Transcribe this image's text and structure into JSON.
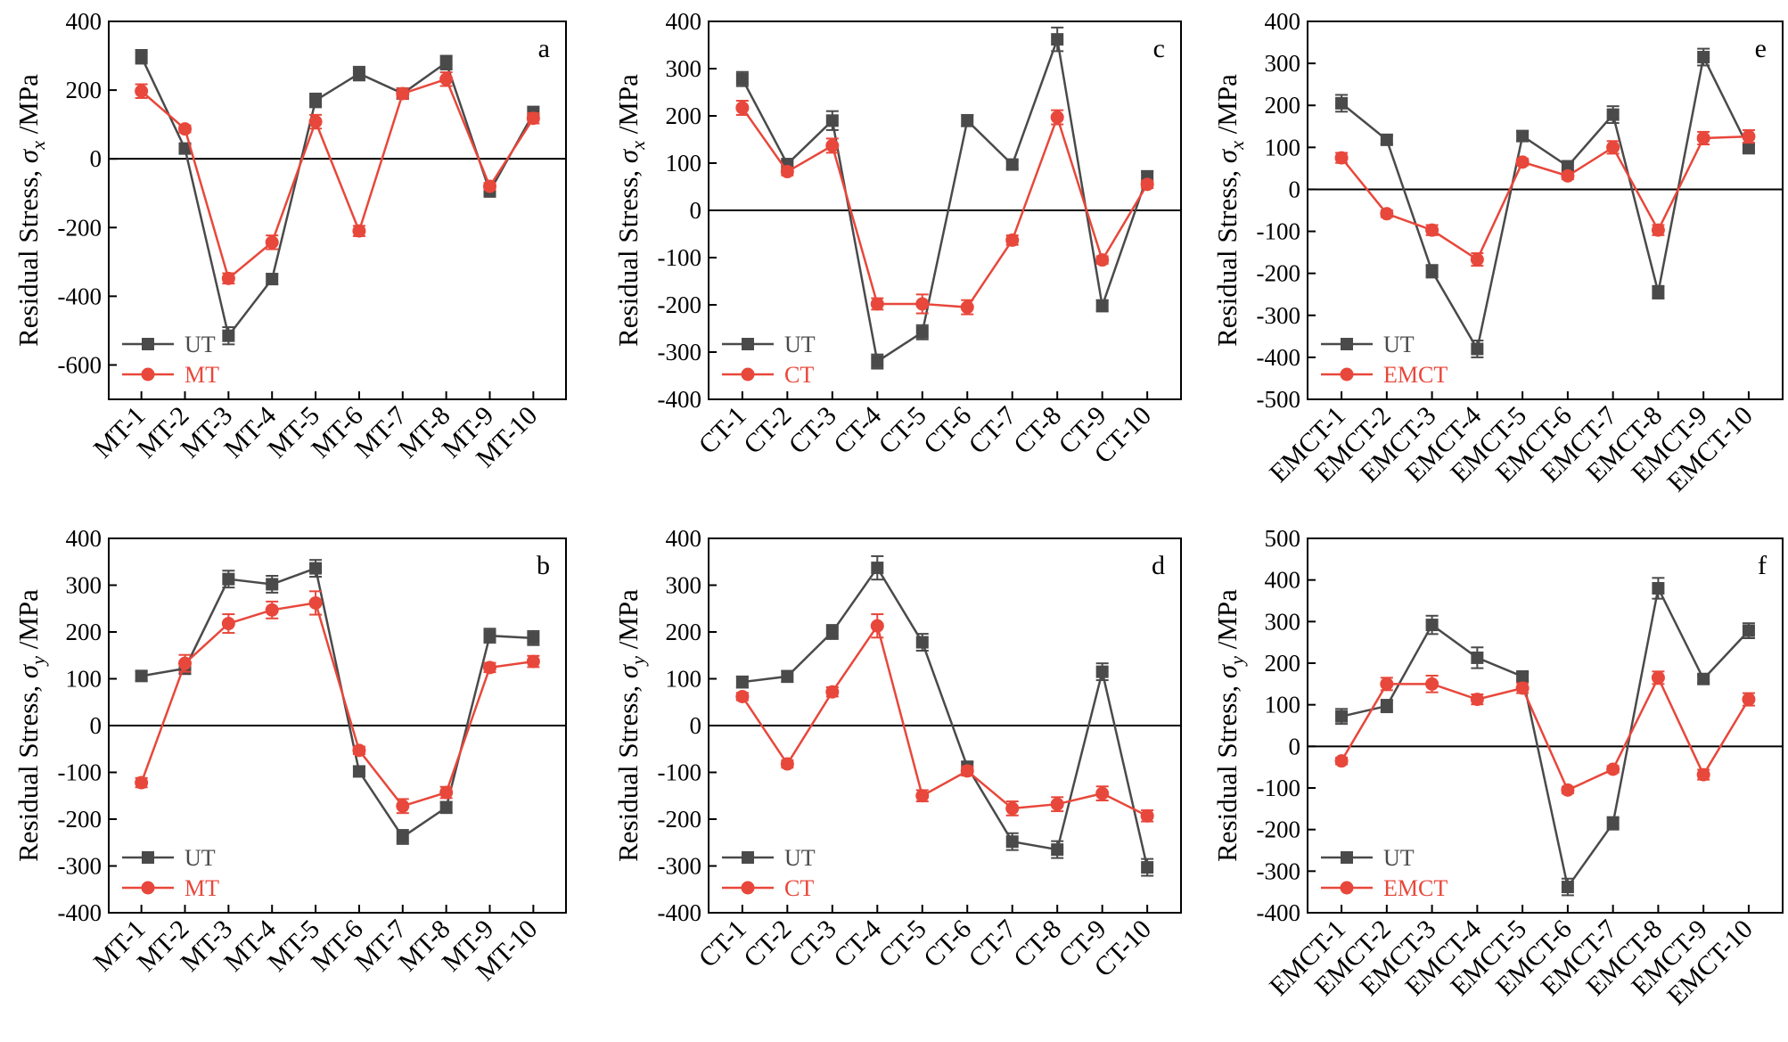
{
  "figure": {
    "colors": {
      "ut": "#4a4a4a",
      "treated": "#e8473b",
      "axis": "#000000"
    }
  },
  "chart_data": [
    {
      "panel_label": "a",
      "type": "line",
      "ylabel": "Residual Stress, σx /MPa",
      "ylabel_main": "Residual Stress, ",
      "ylabel_symbol": "σ",
      "ylabel_subscript": "x",
      "ylabel_unit": " /MPa",
      "ylim": [
        -700,
        400
      ],
      "yticks": [
        -600,
        -400,
        -200,
        0,
        200,
        400
      ],
      "categories": [
        "MT-1",
        "MT-2",
        "MT-3",
        "MT-4",
        "MT-5",
        "MT-6",
        "MT-7",
        "MT-8",
        "MT-9",
        "MT-10"
      ],
      "legend_position": "bottom-left",
      "series": [
        {
          "name": "UT",
          "marker": "square",
          "values": [
            297,
            30,
            -515,
            -350,
            170,
            248,
            190,
            280,
            -95,
            132
          ],
          "errors": [
            20,
            10,
            25,
            15,
            20,
            20,
            15,
            20,
            15,
            20
          ]
        },
        {
          "name": "MT",
          "marker": "circle",
          "values": [
            197,
            87,
            -348,
            -243,
            108,
            -210,
            190,
            232,
            -80,
            118
          ],
          "errors": [
            20,
            10,
            15,
            20,
            20,
            15,
            15,
            20,
            10,
            15
          ]
        }
      ]
    },
    {
      "panel_label": "c",
      "type": "line",
      "ylabel": "Residual Stress, σx /MPa",
      "ylabel_main": "Residual Stress, ",
      "ylabel_symbol": "σ",
      "ylabel_subscript": "x",
      "ylabel_unit": " /MPa",
      "ylim": [
        -400,
        400
      ],
      "yticks": [
        -400,
        -300,
        -200,
        -100,
        0,
        100,
        200,
        300,
        400
      ],
      "categories": [
        "CT-1",
        "CT-2",
        "CT-3",
        "CT-4",
        "CT-5",
        "CT-6",
        "CT-7",
        "CT-8",
        "CT-9",
        "CT-10"
      ],
      "legend_position": "bottom-left",
      "series": [
        {
          "name": "UT",
          "marker": "square",
          "values": [
            278,
            98,
            190,
            -320,
            -258,
            190,
            97,
            362,
            -202,
            72
          ],
          "errors": [
            15,
            8,
            20,
            15,
            15,
            12,
            8,
            25,
            12,
            10
          ]
        },
        {
          "name": "CT",
          "marker": "circle",
          "values": [
            217,
            82,
            137,
            -198,
            -198,
            -205,
            -63,
            197,
            -105,
            55
          ],
          "errors": [
            15,
            8,
            15,
            12,
            20,
            15,
            10,
            15,
            8,
            8
          ]
        }
      ]
    },
    {
      "panel_label": "e",
      "type": "line",
      "ylabel": "Residual Stress, σx /MPa",
      "ylabel_main": "Residual Stress, ",
      "ylabel_symbol": "σ",
      "ylabel_subscript": "x",
      "ylabel_unit": " /MPa",
      "ylim": [
        -500,
        400
      ],
      "yticks": [
        -500,
        -400,
        -300,
        -200,
        -100,
        0,
        100,
        200,
        300,
        400
      ],
      "categories": [
        "EMCT-1",
        "EMCT-2",
        "EMCT-3",
        "EMCT-4",
        "EMCT-5",
        "EMCT-6",
        "EMCT-7",
        "EMCT-8",
        "EMCT-9",
        "EMCT-10"
      ],
      "legend_position": "bottom-left",
      "series": [
        {
          "name": "UT",
          "marker": "square",
          "values": [
            205,
            118,
            -195,
            -380,
            127,
            55,
            178,
            -245,
            315,
            98
          ],
          "errors": [
            20,
            10,
            15,
            20,
            12,
            10,
            20,
            15,
            20,
            8
          ]
        },
        {
          "name": "EMCT",
          "marker": "circle",
          "values": [
            75,
            -58,
            -97,
            -167,
            65,
            32,
            100,
            -97,
            122,
            126
          ],
          "errors": [
            12,
            8,
            12,
            15,
            8,
            8,
            15,
            12,
            15,
            15
          ]
        }
      ]
    },
    {
      "panel_label": "b",
      "type": "line",
      "ylabel": "Residual Stress, σy /MPa",
      "ylabel_main": "Residual Stress, ",
      "ylabel_symbol": "σ",
      "ylabel_subscript": "y",
      "ylabel_unit": " /MPa",
      "ylim": [
        -400,
        400
      ],
      "yticks": [
        -400,
        -300,
        -200,
        -100,
        0,
        100,
        200,
        300,
        400
      ],
      "categories": [
        "MT-1",
        "MT-2",
        "MT-3",
        "MT-4",
        "MT-5",
        "MT-6",
        "MT-7",
        "MT-8",
        "MT-9",
        "MT-10"
      ],
      "legend_position": "bottom-left",
      "series": [
        {
          "name": "UT",
          "marker": "square",
          "values": [
            106,
            122,
            313,
            302,
            336,
            -98,
            -238,
            -175,
            192,
            187
          ],
          "errors": [
            10,
            12,
            18,
            18,
            18,
            10,
            15,
            12,
            15,
            15
          ]
        },
        {
          "name": "MT",
          "marker": "circle",
          "values": [
            -122,
            133,
            218,
            247,
            262,
            -53,
            -172,
            -143,
            124,
            137
          ],
          "errors": [
            10,
            18,
            20,
            18,
            25,
            8,
            15,
            12,
            10,
            12
          ]
        }
      ]
    },
    {
      "panel_label": "d",
      "type": "line",
      "ylabel": "Residual Stress, σy /MPa",
      "ylabel_main": "Residual Stress, ",
      "ylabel_symbol": "σ",
      "ylabel_subscript": "y",
      "ylabel_unit": " /MPa",
      "ylim": [
        -400,
        400
      ],
      "yticks": [
        -400,
        -300,
        -200,
        -100,
        0,
        100,
        200,
        300,
        400
      ],
      "categories": [
        "CT-1",
        "CT-2",
        "CT-3",
        "CT-4",
        "CT-5",
        "CT-6",
        "CT-7",
        "CT-8",
        "CT-9",
        "CT-10"
      ],
      "legend_position": "bottom-left",
      "series": [
        {
          "name": "UT",
          "marker": "square",
          "values": [
            93,
            105,
            200,
            337,
            178,
            -88,
            -248,
            -265,
            115,
            -303
          ],
          "errors": [
            12,
            12,
            15,
            25,
            18,
            10,
            18,
            18,
            18,
            18
          ]
        },
        {
          "name": "CT",
          "marker": "circle",
          "values": [
            62,
            -82,
            72,
            213,
            -150,
            -97,
            -177,
            -168,
            -145,
            -193
          ],
          "errors": [
            8,
            8,
            10,
            25,
            12,
            10,
            15,
            15,
            15,
            12
          ]
        }
      ]
    },
    {
      "panel_label": "f",
      "type": "line",
      "ylabel": "Residual Stress, σy /MPa",
      "ylabel_main": "Residual Stress, ",
      "ylabel_symbol": "σ",
      "ylabel_subscript": "y",
      "ylabel_unit": " /MPa",
      "ylim": [
        -400,
        500
      ],
      "yticks": [
        -400,
        -300,
        -200,
        -100,
        0,
        100,
        200,
        300,
        400,
        500
      ],
      "categories": [
        "EMCT-1",
        "EMCT-2",
        "EMCT-3",
        "EMCT-4",
        "EMCT-5",
        "EMCT-6",
        "EMCT-7",
        "EMCT-8",
        "EMCT-9",
        "EMCT-10"
      ],
      "legend_position": "bottom-left",
      "series": [
        {
          "name": "UT",
          "marker": "square",
          "values": [
            72,
            97,
            292,
            213,
            168,
            -338,
            -185,
            380,
            162,
            278
          ],
          "errors": [
            18,
            15,
            22,
            25,
            10,
            20,
            15,
            25,
            10,
            18
          ]
        },
        {
          "name": "EMCT",
          "marker": "circle",
          "values": [
            -35,
            150,
            150,
            113,
            140,
            -105,
            -55,
            165,
            -68,
            113
          ],
          "errors": [
            8,
            15,
            20,
            12,
            12,
            8,
            8,
            15,
            12,
            15
          ]
        }
      ]
    }
  ]
}
